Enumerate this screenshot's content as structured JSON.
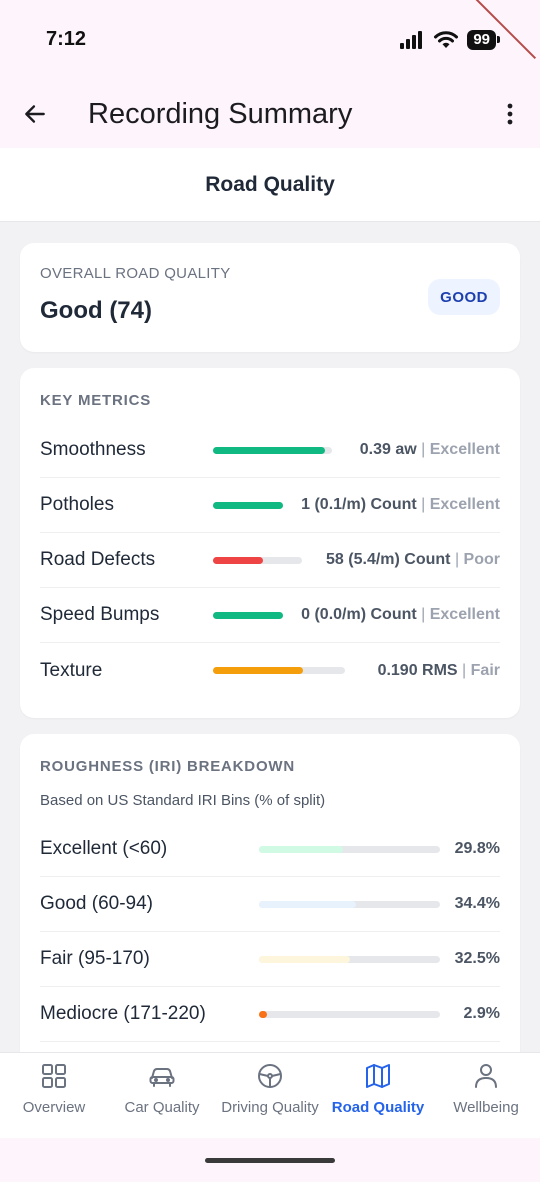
{
  "status": {
    "time": "7:12",
    "battery": "99"
  },
  "appbar": {
    "title": "Recording Summary"
  },
  "tab_header": {
    "title": "Road Quality"
  },
  "overall": {
    "label": "OVERALL ROAD QUALITY",
    "value": "Good (74)",
    "badge": "GOOD"
  },
  "metrics": {
    "title": "KEY METRICS",
    "items": [
      {
        "name": "Smoothness",
        "value": "0.39 aw",
        "rating": "Excellent",
        "fill": 0.94,
        "track": 0.6,
        "color": "#10b981"
      },
      {
        "name": "Potholes",
        "value": "1 (0.1/m) Count",
        "rating": "Excellent",
        "fill": 1.0,
        "track": 0.3,
        "color": "#10b981"
      },
      {
        "name": "Road Defects",
        "value": "58 (5.4/m) Count",
        "rating": "Poor",
        "fill": 0.56,
        "track": 0.42,
        "color": "#ef4444"
      },
      {
        "name": "Speed Bumps",
        "value": "0 (0.0/m) Count",
        "rating": "Excellent",
        "fill": 1.0,
        "track": 0.305,
        "color": "#10b981"
      },
      {
        "name": "Texture",
        "value": "0.190 RMS",
        "rating": "Fair",
        "fill": 0.68,
        "track": 0.68,
        "color": "#f59e0b"
      }
    ]
  },
  "iri": {
    "title": "ROUGHNESS (IRI) BREAKDOWN",
    "subtitle": "Based on US Standard IRI Bins (% of split)",
    "items": [
      {
        "name": "Excellent (<60)",
        "pct": "29.8%",
        "fill": 0.298,
        "color": "#d1fae5"
      },
      {
        "name": "Good (60-94)",
        "pct": "34.4%",
        "fill": 0.344,
        "color": "#e8f2fd"
      },
      {
        "name": "Fair (95-170)",
        "pct": "32.5%",
        "fill": 0.325,
        "color": "#fdf6dc"
      },
      {
        "name": "Mediocre (171-220)",
        "pct": "2.9%",
        "fill": 0.029,
        "color": "#f97316"
      }
    ]
  },
  "nav": {
    "items": [
      {
        "label": "Overview",
        "icon": "grid-icon",
        "active": false
      },
      {
        "label": "Car Quality",
        "icon": "car-icon",
        "active": false
      },
      {
        "label": "Driving Quality",
        "icon": "steering-wheel-icon",
        "active": false
      },
      {
        "label": "Road Quality",
        "icon": "map-icon",
        "active": true
      },
      {
        "label": "Wellbeing",
        "icon": "person-icon",
        "active": false
      }
    ]
  }
}
